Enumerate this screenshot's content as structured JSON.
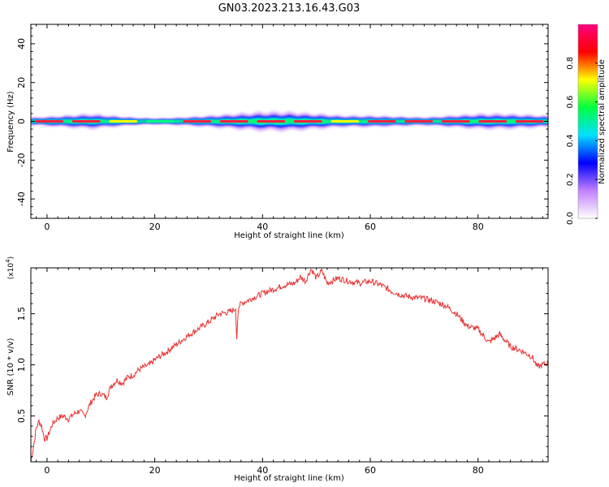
{
  "title": "GN03.2023.213.16.43.G03",
  "chart_data": [
    {
      "type": "heatmap",
      "xlabel": "Height of straight line (km)",
      "ylabel": "Frequency (Hz)",
      "xlim": [
        -3,
        93
      ],
      "ylim": [
        -50,
        50
      ],
      "xticks": [
        0,
        20,
        40,
        60,
        80
      ],
      "xtick_labels": [
        "0",
        "20",
        "40",
        "60",
        "80"
      ],
      "yticks": [
        40,
        20,
        0,
        -20,
        -40
      ],
      "ytick_labels": [
        "40",
        "20",
        "0",
        "-20",
        "-40"
      ],
      "grid": false,
      "colorbar": {
        "label": "Normalized spectral amplitude",
        "range": [
          0,
          1
        ],
        "ticks": [
          0.0,
          0.2,
          0.4,
          0.6,
          0.8
        ],
        "tick_labels": [
          "0.0",
          "0.2",
          "0.4",
          "0.6",
          "0.8"
        ],
        "colormap": [
          "#ffffff",
          "#c080ff",
          "#0000ff",
          "#00e0ff",
          "#00ff40",
          "#ffff00",
          "#ff0000",
          "#ff0080"
        ]
      },
      "band_center_hz": 0,
      "band_halfwidth_hz": [
        2,
        3,
        4,
        3,
        2,
        1.5,
        2,
        3,
        4,
        5,
        5,
        4,
        3,
        3,
        2.5,
        2,
        3,
        4,
        4,
        3
      ],
      "band_halfwidth_x": [
        -2,
        3,
        8,
        12,
        16,
        20,
        25,
        30,
        35,
        40,
        45,
        50,
        55,
        60,
        65,
        70,
        75,
        80,
        85,
        92
      ],
      "peak_colors": [
        "#ff2040",
        "#ff2040",
        "#ffff00",
        "#00ff80",
        "#ff2040",
        "#ff2040",
        "#ff2040",
        "#ff2040",
        "#ffff00",
        "#ff2040",
        "#ff2040",
        "#ff2040",
        "#ff2040",
        "#ff2040"
      ]
    },
    {
      "type": "line",
      "xlabel": "Height of straight line (km)",
      "ylabel": "SNR (10 * v/v)",
      "y_multiplier_label": "(x10",
      "y_multiplier_exp": "4",
      "y_multiplier_close": ")",
      "xlim": [
        -3,
        93
      ],
      "ylim": [
        0.05,
        1.95
      ],
      "xticks": [
        0,
        20,
        40,
        60,
        80
      ],
      "xtick_labels": [
        "0",
        "20",
        "40",
        "60",
        "80"
      ],
      "yticks": [
        0.5,
        1.0,
        1.5
      ],
      "ytick_labels": [
        "0.5",
        "1.0",
        "1.5"
      ],
      "grid": false,
      "series": [
        {
          "color": "#e83030",
          "x": [
            -3,
            -2.5,
            -2,
            -1.5,
            -1,
            -0.5,
            0,
            1,
            2,
            3,
            4,
            5,
            6,
            7,
            8,
            9,
            10,
            11,
            12,
            13,
            14,
            15,
            16,
            17,
            18,
            19,
            20,
            22,
            24,
            26,
            28,
            30,
            32,
            34,
            35,
            35.2,
            35.5,
            36,
            38,
            40,
            42,
            44,
            46,
            47,
            48,
            49,
            50,
            51,
            52,
            54,
            56,
            58,
            60,
            62,
            64,
            66,
            68,
            70,
            72,
            74,
            76,
            78,
            80,
            82,
            84,
            86,
            88,
            90,
            91,
            92,
            93
          ],
          "y": [
            0.05,
            0.2,
            0.38,
            0.45,
            0.4,
            0.28,
            0.28,
            0.42,
            0.48,
            0.5,
            0.47,
            0.52,
            0.55,
            0.5,
            0.62,
            0.7,
            0.72,
            0.68,
            0.8,
            0.85,
            0.82,
            0.88,
            0.9,
            0.95,
            0.98,
            1.0,
            1.05,
            1.12,
            1.2,
            1.28,
            1.35,
            1.42,
            1.5,
            1.52,
            1.55,
            1.25,
            1.56,
            1.6,
            1.65,
            1.7,
            1.74,
            1.78,
            1.8,
            1.86,
            1.82,
            1.94,
            1.85,
            1.92,
            1.8,
            1.85,
            1.82,
            1.8,
            1.82,
            1.78,
            1.72,
            1.68,
            1.66,
            1.65,
            1.62,
            1.58,
            1.5,
            1.38,
            1.35,
            1.22,
            1.3,
            1.18,
            1.14,
            1.08,
            0.98,
            1.0,
            1.02
          ]
        }
      ]
    }
  ]
}
